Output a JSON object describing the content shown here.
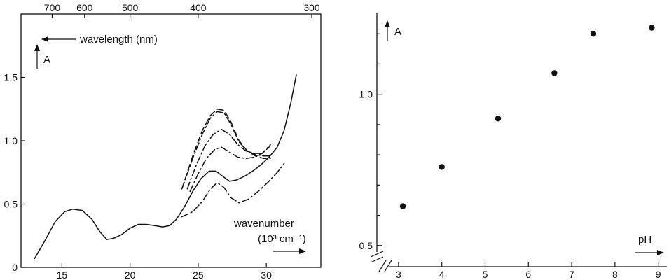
{
  "chart_data": [
    {
      "type": "line",
      "title": "",
      "x_axis": {
        "label": "wavenumber",
        "unit_label": "(10³ cm⁻¹)",
        "range": [
          12,
          34
        ],
        "ticks": [
          15,
          20,
          25,
          30
        ]
      },
      "top_axis": {
        "label": "wavelength (nm)",
        "ticks": [
          700,
          600,
          500,
          400,
          300
        ]
      },
      "y_axis": {
        "label": "A",
        "range": [
          0,
          2.0
        ],
        "ticks": [
          0,
          0.5,
          1.0,
          1.5
        ],
        "tick_labels": [
          "0",
          "0.5",
          "1.0",
          "1.5"
        ]
      },
      "grid": false,
      "series": [
        {
          "style": "solid",
          "x": [
            13.0,
            13.8,
            14.5,
            15.2,
            15.8,
            16.5,
            17.2,
            17.8,
            18.3,
            18.8,
            19.4,
            20.0,
            20.6,
            21.2,
            21.8,
            22.4,
            22.9,
            23.4,
            24.0,
            24.6,
            25.2,
            25.8,
            26.3,
            26.8,
            27.3,
            27.8,
            28.4,
            29.0,
            29.6,
            30.2,
            30.8,
            31.3,
            31.8,
            32.2
          ],
          "y": [
            0.07,
            0.22,
            0.36,
            0.44,
            0.46,
            0.45,
            0.38,
            0.28,
            0.22,
            0.23,
            0.26,
            0.31,
            0.34,
            0.34,
            0.33,
            0.32,
            0.33,
            0.38,
            0.48,
            0.6,
            0.7,
            0.76,
            0.76,
            0.72,
            0.68,
            0.69,
            0.72,
            0.76,
            0.81,
            0.87,
            0.95,
            1.08,
            1.3,
            1.52
          ]
        },
        {
          "style": "dashed",
          "x": [
            23.8,
            24.6,
            25.3,
            25.9,
            26.4,
            26.9,
            27.4,
            28.0,
            28.6,
            29.2,
            29.8,
            30.3
          ],
          "y": [
            0.62,
            0.88,
            1.08,
            1.2,
            1.25,
            1.24,
            1.15,
            1.0,
            0.92,
            0.88,
            0.86,
            0.86
          ]
        },
        {
          "style": "dash-dot",
          "x": [
            23.8,
            24.6,
            25.3,
            25.9,
            26.4,
            26.9,
            27.4,
            28.0,
            28.6,
            29.2,
            29.8,
            30.3
          ],
          "y": [
            0.62,
            0.86,
            1.05,
            1.18,
            1.23,
            1.22,
            1.13,
            0.99,
            0.92,
            0.89,
            0.88,
            0.88
          ]
        },
        {
          "style": "dash-dot",
          "x": [
            24.2,
            24.9,
            25.5,
            26.1,
            26.7,
            27.3,
            27.9,
            28.5,
            29.1,
            29.7,
            30.3
          ],
          "y": [
            0.62,
            0.82,
            0.96,
            1.05,
            1.09,
            1.05,
            0.97,
            0.92,
            0.9,
            0.9,
            0.96
          ]
        },
        {
          "style": "dash-dot",
          "x": [
            24.4,
            25.0,
            25.6,
            26.2,
            26.7,
            27.3,
            27.9,
            28.5,
            29.1,
            29.7,
            30.3
          ],
          "y": [
            0.6,
            0.74,
            0.86,
            0.93,
            0.95,
            0.91,
            0.87,
            0.86,
            0.87,
            0.9,
            0.97
          ]
        },
        {
          "style": "dash-dot",
          "x": [
            23.8,
            24.6,
            25.3,
            25.9,
            26.4,
            26.9,
            27.4,
            28.0,
            28.7,
            29.4,
            30.1,
            30.8,
            31.3
          ],
          "y": [
            0.4,
            0.44,
            0.52,
            0.62,
            0.67,
            0.63,
            0.55,
            0.51,
            0.54,
            0.6,
            0.67,
            0.75,
            0.82
          ]
        }
      ]
    },
    {
      "type": "scatter",
      "title": "",
      "x_axis": {
        "label": "pH",
        "range": [
          2.5,
          9.2
        ],
        "ticks": [
          3,
          4,
          5,
          6,
          7,
          8,
          9
        ],
        "broken": true
      },
      "y_axis": {
        "label": "A",
        "range": [
          0.43,
          1.27
        ],
        "ticks": [
          0.5,
          1.0
        ],
        "tick_labels": [
          "0.5",
          "1.0"
        ],
        "broken": true
      },
      "grid": false,
      "series": [
        {
          "marker": "filled-circle",
          "x": [
            3.1,
            4.0,
            5.3,
            6.6,
            7.5,
            8.85
          ],
          "y": [
            0.63,
            0.76,
            0.92,
            1.07,
            1.2,
            1.22
          ]
        }
      ]
    }
  ]
}
